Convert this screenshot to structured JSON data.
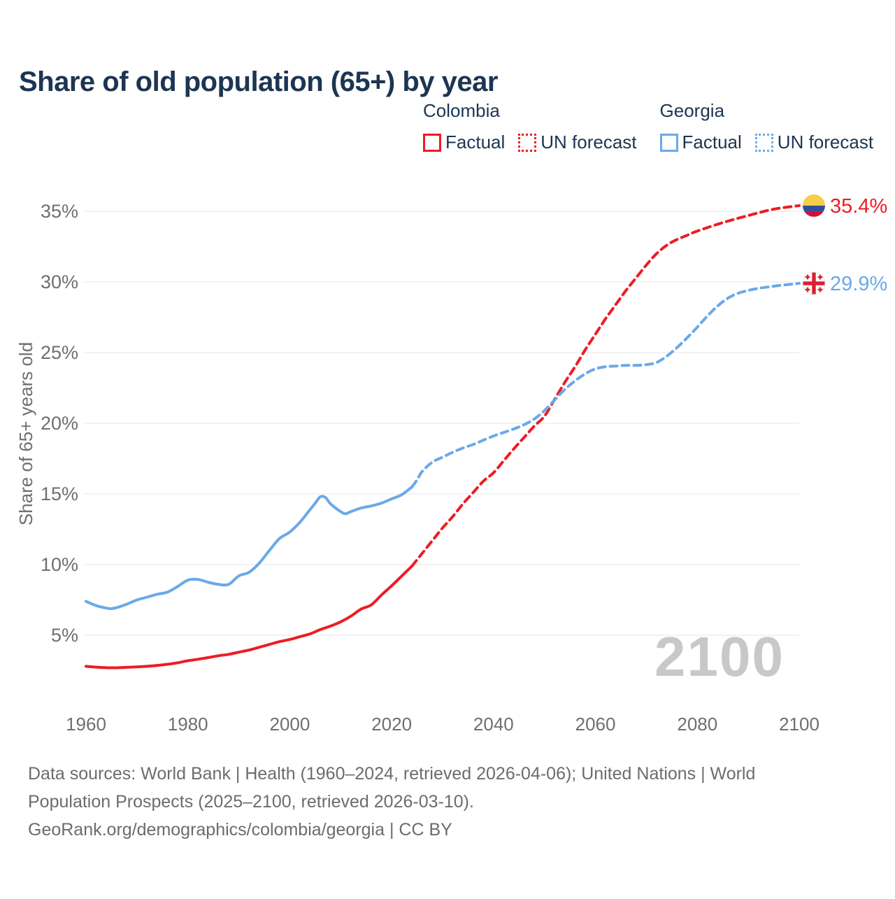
{
  "header": {
    "title": "Share of old population (65+) by year"
  },
  "legend": {
    "groups": [
      {
        "name": "Colombia",
        "color": "#ed1c24",
        "items": [
          {
            "label": "Factual",
            "line_style": "solid"
          },
          {
            "label": "UN forecast",
            "line_style": "dotted"
          }
        ]
      },
      {
        "name": "Georgia",
        "color": "#6aa9e9",
        "items": [
          {
            "label": "Factual",
            "line_style": "solid"
          },
          {
            "label": "UN forecast",
            "line_style": "dotted"
          }
        ]
      }
    ]
  },
  "chart_data": {
    "type": "line",
    "title": "Share of old population (65+) by year",
    "xlabel": "",
    "ylabel": "Share of 65+ years old",
    "grid": "horizontal",
    "watermark": "2100",
    "x_axis": {
      "min": 1960,
      "max": 2100,
      "ticks": [
        1960,
        1980,
        2000,
        2020,
        2040,
        2060,
        2080,
        2100
      ]
    },
    "y_axis": {
      "min": 2,
      "max": 36.5,
      "ticks": [
        5,
        10,
        15,
        20,
        25,
        30,
        35
      ],
      "tick_suffix": "%"
    },
    "series": [
      {
        "name": "Colombia Factual",
        "country": "Colombia",
        "kind": "factual",
        "color": "#ed1c24",
        "dashed": false,
        "points": [
          [
            1960,
            2.8
          ],
          [
            1963,
            2.72
          ],
          [
            1966,
            2.7
          ],
          [
            1969,
            2.75
          ],
          [
            1972,
            2.8
          ],
          [
            1975,
            2.9
          ],
          [
            1978,
            3.05
          ],
          [
            1980,
            3.2
          ],
          [
            1982,
            3.3
          ],
          [
            1984,
            3.42
          ],
          [
            1986,
            3.55
          ],
          [
            1988,
            3.65
          ],
          [
            1990,
            3.8
          ],
          [
            1992,
            3.95
          ],
          [
            1994,
            4.15
          ],
          [
            1996,
            4.35
          ],
          [
            1998,
            4.55
          ],
          [
            2000,
            4.7
          ],
          [
            2002,
            4.9
          ],
          [
            2004,
            5.1
          ],
          [
            2006,
            5.4
          ],
          [
            2008,
            5.65
          ],
          [
            2010,
            5.95
          ],
          [
            2012,
            6.35
          ],
          [
            2014,
            6.85
          ],
          [
            2016,
            7.15
          ],
          [
            2018,
            7.85
          ],
          [
            2020,
            8.5
          ],
          [
            2022,
            9.2
          ],
          [
            2024,
            9.9
          ]
        ]
      },
      {
        "name": "Colombia UN forecast",
        "country": "Colombia",
        "kind": "forecast",
        "color": "#ed1c24",
        "dashed": true,
        "points": [
          [
            2024,
            9.9
          ],
          [
            2026,
            10.8
          ],
          [
            2028,
            11.7
          ],
          [
            2030,
            12.6
          ],
          [
            2032,
            13.4
          ],
          [
            2034,
            14.3
          ],
          [
            2036,
            15.1
          ],
          [
            2038,
            15.9
          ],
          [
            2040,
            16.5
          ],
          [
            2042,
            17.35
          ],
          [
            2044,
            18.2
          ],
          [
            2046,
            19.0
          ],
          [
            2048,
            19.8
          ],
          [
            2050,
            20.5
          ],
          [
            2052,
            21.7
          ],
          [
            2054,
            22.9
          ],
          [
            2056,
            24.0
          ],
          [
            2058,
            25.2
          ],
          [
            2060,
            26.3
          ],
          [
            2062,
            27.4
          ],
          [
            2064,
            28.4
          ],
          [
            2066,
            29.4
          ],
          [
            2068,
            30.3
          ],
          [
            2070,
            31.2
          ],
          [
            2072,
            32.0
          ],
          [
            2074,
            32.6
          ],
          [
            2076,
            33.0
          ],
          [
            2078,
            33.3
          ],
          [
            2080,
            33.6
          ],
          [
            2085,
            34.2
          ],
          [
            2090,
            34.7
          ],
          [
            2095,
            35.15
          ],
          [
            2100,
            35.4
          ]
        ]
      },
      {
        "name": "Georgia Factual",
        "country": "Georgia",
        "kind": "factual",
        "color": "#6aa9e9",
        "dashed": false,
        "points": [
          [
            1960,
            7.4
          ],
          [
            1962,
            7.1
          ],
          [
            1964,
            6.92
          ],
          [
            1965,
            6.88
          ],
          [
            1966,
            6.95
          ],
          [
            1968,
            7.2
          ],
          [
            1970,
            7.5
          ],
          [
            1972,
            7.7
          ],
          [
            1974,
            7.9
          ],
          [
            1976,
            8.05
          ],
          [
            1978,
            8.45
          ],
          [
            1980,
            8.9
          ],
          [
            1982,
            8.95
          ],
          [
            1984,
            8.75
          ],
          [
            1986,
            8.6
          ],
          [
            1988,
            8.6
          ],
          [
            1990,
            9.2
          ],
          [
            1992,
            9.45
          ],
          [
            1994,
            10.1
          ],
          [
            1996,
            11.0
          ],
          [
            1998,
            11.85
          ],
          [
            2000,
            12.3
          ],
          [
            2002,
            13.0
          ],
          [
            2004,
            13.9
          ],
          [
            2005,
            14.35
          ],
          [
            2006,
            14.8
          ],
          [
            2007,
            14.75
          ],
          [
            2008,
            14.3
          ],
          [
            2010,
            13.75
          ],
          [
            2011,
            13.6
          ],
          [
            2012,
            13.75
          ],
          [
            2014,
            14.0
          ],
          [
            2016,
            14.15
          ],
          [
            2018,
            14.35
          ],
          [
            2020,
            14.65
          ],
          [
            2022,
            14.95
          ],
          [
            2024,
            15.5
          ]
        ]
      },
      {
        "name": "Georgia UN forecast",
        "country": "Georgia",
        "kind": "forecast",
        "color": "#6aa9e9",
        "dashed": true,
        "points": [
          [
            2024,
            15.5
          ],
          [
            2025,
            16.0
          ],
          [
            2026,
            16.6
          ],
          [
            2028,
            17.25
          ],
          [
            2030,
            17.6
          ],
          [
            2032,
            17.95
          ],
          [
            2034,
            18.25
          ],
          [
            2036,
            18.5
          ],
          [
            2038,
            18.8
          ],
          [
            2040,
            19.1
          ],
          [
            2042,
            19.35
          ],
          [
            2044,
            19.6
          ],
          [
            2046,
            19.9
          ],
          [
            2048,
            20.3
          ],
          [
            2050,
            20.9
          ],
          [
            2052,
            21.65
          ],
          [
            2054,
            22.4
          ],
          [
            2056,
            23.0
          ],
          [
            2058,
            23.5
          ],
          [
            2060,
            23.85
          ],
          [
            2062,
            24.0
          ],
          [
            2064,
            24.05
          ],
          [
            2066,
            24.1
          ],
          [
            2068,
            24.1
          ],
          [
            2070,
            24.15
          ],
          [
            2072,
            24.3
          ],
          [
            2074,
            24.75
          ],
          [
            2076,
            25.35
          ],
          [
            2078,
            26.05
          ],
          [
            2080,
            26.8
          ],
          [
            2082,
            27.6
          ],
          [
            2084,
            28.3
          ],
          [
            2086,
            28.85
          ],
          [
            2088,
            29.2
          ],
          [
            2090,
            29.4
          ],
          [
            2092,
            29.55
          ],
          [
            2094,
            29.65
          ],
          [
            2096,
            29.75
          ],
          [
            2098,
            29.82
          ],
          [
            2100,
            29.9
          ]
        ]
      }
    ],
    "end_labels": [
      {
        "text": "35.4%",
        "value": 35.4,
        "country": "Colombia",
        "color": "#ed1c24",
        "flag": "colombia"
      },
      {
        "text": "29.9%",
        "value": 29.9,
        "country": "Georgia",
        "color": "#6aa9e9",
        "flag": "georgia"
      }
    ],
    "flag_colors": {
      "colombia": {
        "yellow": "#f6cf46",
        "blue": "#2e4e9e",
        "red": "#d21034"
      },
      "georgia": {
        "white": "#ffffff",
        "red": "#da2032"
      }
    }
  },
  "footer": {
    "lines": [
      "Data sources: World Bank | Health (1960–2024, retrieved 2026-04-06); United Nations | World",
      "Population Prospects (2025–2100, retrieved 2026-03-10).",
      "GeoRank.org/demographics/colombia/georgia | CC BY"
    ]
  }
}
